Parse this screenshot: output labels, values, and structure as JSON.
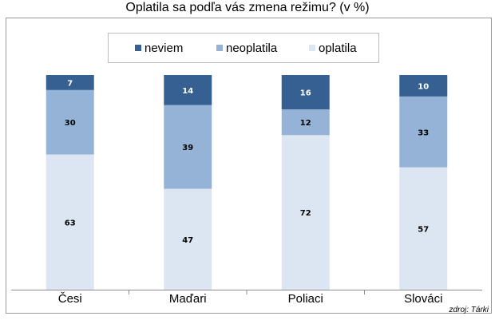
{
  "chart_data": {
    "type": "bar",
    "stacked": true,
    "title": "Oplatila sa podľa vás zmena režimu? (v %)",
    "categories": [
      "Česi",
      "Maďari",
      "Poliaci",
      "Slováci"
    ],
    "series": [
      {
        "name": "oplatila",
        "values": [
          63,
          47,
          72,
          57
        ],
        "color": "#dce6f2"
      },
      {
        "name": "neoplatila",
        "values": [
          30,
          39,
          12,
          33
        ],
        "color": "#95b3d7"
      },
      {
        "name": "neviem",
        "values": [
          7,
          14,
          16,
          10
        ],
        "color": "#366092"
      }
    ],
    "legend_order": [
      "neviem",
      "neoplatila",
      "oplatila"
    ],
    "ylim": [
      0,
      100
    ],
    "grid": false,
    "legend_position": "top-center",
    "source": "zdroj: Tárki"
  }
}
